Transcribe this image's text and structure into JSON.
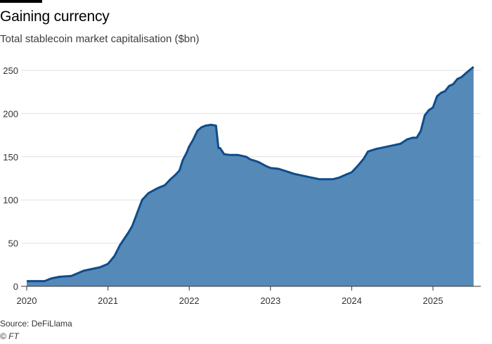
{
  "header": {
    "title": "Gaining currency",
    "subtitle": "Total stablecoin market capitalisation ($bn)"
  },
  "footer": {
    "source": "Source: DeFiLlama",
    "credit": "© FT"
  },
  "colors": {
    "area_fill": "#5589b8",
    "line": "#0f4c8a",
    "grid": "#e0e0e0",
    "axis": "#333333"
  },
  "chart_data": {
    "type": "area",
    "title": "Gaining currency",
    "subtitle": "Total stablecoin market capitalisation ($bn)",
    "xlabel": "",
    "ylabel": "",
    "xlim": [
      2020.0,
      2025.6
    ],
    "ylim": [
      0,
      260
    ],
    "y_ticks": [
      0,
      50,
      100,
      150,
      200,
      250
    ],
    "x_ticks": [
      2020,
      2021,
      2022,
      2023,
      2024,
      2025
    ],
    "x_tick_labels": [
      "2020",
      "2021",
      "2022",
      "2023",
      "2024",
      "2025"
    ],
    "grid": "horizontal",
    "series": [
      {
        "x": [
          2020.0,
          2020.1,
          2020.22,
          2020.3,
          2020.4,
          2020.55,
          2020.7,
          2020.8,
          2020.9,
          2021.0,
          2021.08,
          2021.15,
          2021.25,
          2021.3,
          2021.36,
          2021.42,
          2021.5,
          2021.56,
          2021.62,
          2021.7,
          2021.77,
          2021.83,
          2021.88,
          2021.92,
          2021.97,
          2022.0,
          2022.05,
          2022.1,
          2022.15,
          2022.2,
          2022.27,
          2022.33,
          2022.36,
          2022.38,
          2022.43,
          2022.5,
          2022.6,
          2022.7,
          2022.75,
          2022.85,
          2022.95,
          2023.0,
          2023.1,
          2023.2,
          2023.3,
          2023.4,
          2023.5,
          2023.6,
          2023.7,
          2023.77,
          2023.85,
          2023.92,
          2024.0,
          2024.08,
          2024.15,
          2024.2,
          2024.3,
          2024.4,
          2024.5,
          2024.6,
          2024.68,
          2024.75,
          2024.8,
          2024.85,
          2024.9,
          2024.95,
          2025.0,
          2025.05,
          2025.1,
          2025.15,
          2025.2,
          2025.25,
          2025.3,
          2025.35,
          2025.42,
          2025.5
        ],
        "values": [
          6,
          6,
          6,
          9,
          11,
          12,
          18,
          20,
          22,
          26,
          35,
          48,
          62,
          70,
          85,
          100,
          108,
          111,
          114,
          117,
          124,
          129,
          134,
          146,
          155,
          162,
          170,
          180,
          184,
          186,
          187,
          186,
          160,
          160,
          153,
          152,
          152,
          150,
          147,
          144,
          139,
          137,
          136,
          133,
          130,
          128,
          126,
          124,
          124,
          124,
          126,
          129,
          132,
          140,
          148,
          156,
          159,
          161,
          163,
          165,
          170,
          172,
          172,
          180,
          198,
          204,
          207,
          220,
          224,
          226,
          232,
          234,
          240,
          242,
          248,
          254
        ]
      }
    ]
  }
}
